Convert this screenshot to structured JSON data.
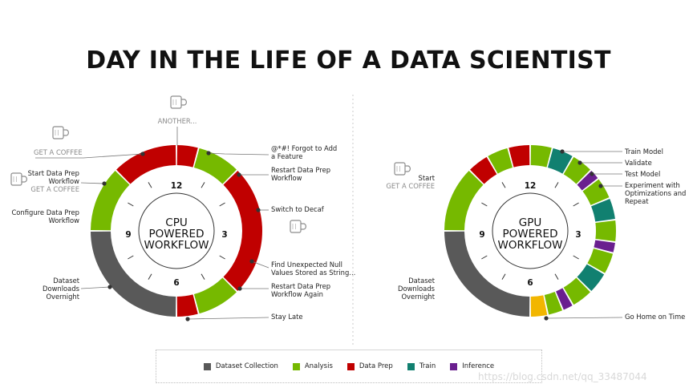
{
  "title": "DAY IN THE LIFE OF A DATA SCIENTIST",
  "colors": {
    "dataset": "#595959",
    "analysis": "#76b900",
    "dataprep": "#c00000",
    "train": "#118070",
    "inference": "#6a1f8f",
    "home": "#f2b600"
  },
  "cpu": {
    "center_lines": [
      "CPU",
      "POWERED",
      "WORKFLOW"
    ],
    "clock": {
      "n12": "12",
      "n3": "3",
      "n6": "6",
      "n9": "9"
    },
    "segments": [
      {
        "from": 0,
        "to": 0.5,
        "kind": "dataprep"
      },
      {
        "from": 0.5,
        "to": 1.5,
        "kind": "analysis"
      },
      {
        "from": 1.5,
        "to": 4.5,
        "kind": "dataprep"
      },
      {
        "from": 4.5,
        "to": 5.5,
        "kind": "analysis"
      },
      {
        "from": 5.5,
        "to": 6,
        "kind": "dataprep"
      },
      {
        "from": 6,
        "to": 9,
        "kind": "dataset"
      },
      {
        "from": 9,
        "to": 10.5,
        "kind": "analysis"
      },
      {
        "from": 10.5,
        "to": 12,
        "kind": "dataprep"
      }
    ],
    "labels": {
      "another": "ANOTHER...",
      "get_coffee_1": "GET A COFFEE",
      "start_prep_1": "Start Data Prep",
      "start_prep_2": "Workflow",
      "get_coffee_2": "GET A COFFEE",
      "configure_1": "Configure Data Prep",
      "configure_2": "Workflow",
      "dataset_1": "Dataset",
      "dataset_2": "Downloads",
      "dataset_3": "Overnight",
      "forgot_1": "@*#! Forgot to Add",
      "forgot_2": "a Feature",
      "restart_1": "Restart Data Prep",
      "restart_2": "Workflow",
      "decaf": "Switch to Decaf",
      "null_1": "Find Unexpected Null",
      "null_2": "Values Stored as String...",
      "restart_again_1": "Restart Data Prep",
      "restart_again_2": "Workflow Again",
      "stay_late": "Stay Late"
    }
  },
  "gpu": {
    "center_lines": [
      "GPU",
      "POWERED",
      "WORKFLOW"
    ],
    "clock": {
      "n12": "12",
      "n3": "3",
      "n6": "6",
      "n9": "9"
    },
    "segments": [
      {
        "from": 0,
        "to": 0.5,
        "kind": "analysis"
      },
      {
        "from": 0.5,
        "to": 1,
        "kind": "train"
      },
      {
        "from": 1,
        "to": 1.5,
        "kind": "analysis"
      },
      {
        "from": 1.5,
        "to": 1.75,
        "kind": "inference"
      },
      {
        "from": 1.75,
        "to": 2.25,
        "kind": "analysis"
      },
      {
        "from": 2.25,
        "to": 2.75,
        "kind": "train"
      },
      {
        "from": 2.75,
        "to": 3.25,
        "kind": "analysis"
      },
      {
        "from": 3.25,
        "to": 3.5,
        "kind": "inference"
      },
      {
        "from": 3.5,
        "to": 4,
        "kind": "analysis"
      },
      {
        "from": 4,
        "to": 4.5,
        "kind": "train"
      },
      {
        "from": 4.5,
        "to": 5,
        "kind": "analysis"
      },
      {
        "from": 5,
        "to": 5.25,
        "kind": "inference"
      },
      {
        "from": 5.25,
        "to": 5.6,
        "kind": "analysis"
      },
      {
        "from": 5.6,
        "to": 6,
        "kind": "home"
      },
      {
        "from": 6,
        "to": 9,
        "kind": "dataset"
      },
      {
        "from": 9,
        "to": 10.5,
        "kind": "analysis"
      },
      {
        "from": 10.5,
        "to": 11,
        "kind": "dataprep"
      },
      {
        "from": 11,
        "to": 11.5,
        "kind": "analysis"
      },
      {
        "from": 11.5,
        "to": 12,
        "kind": "dataprep"
      }
    ],
    "labels": {
      "start": "Start",
      "get_coffee": "GET A COFFEE",
      "dataset_1": "Dataset",
      "dataset_2": "Downloads",
      "dataset_3": "Overnight",
      "train_model": "Train Model",
      "validate": "Validate",
      "test_model": "Test Model",
      "experiment_1": "Experiment with",
      "experiment_2": "Optimizations and",
      "experiment_3": "Repeat",
      "go_home": "Go Home on Time"
    }
  },
  "legend": [
    {
      "label": "Dataset Collection",
      "color": "#595959"
    },
    {
      "label": "Analysis",
      "color": "#76b900"
    },
    {
      "label": "Data Prep",
      "color": "#c00000"
    },
    {
      "label": "Train",
      "color": "#118070"
    },
    {
      "label": "Inference",
      "color": "#6a1f8f"
    }
  ],
  "watermark": "https://blog.csdn.net/qq_33487044"
}
